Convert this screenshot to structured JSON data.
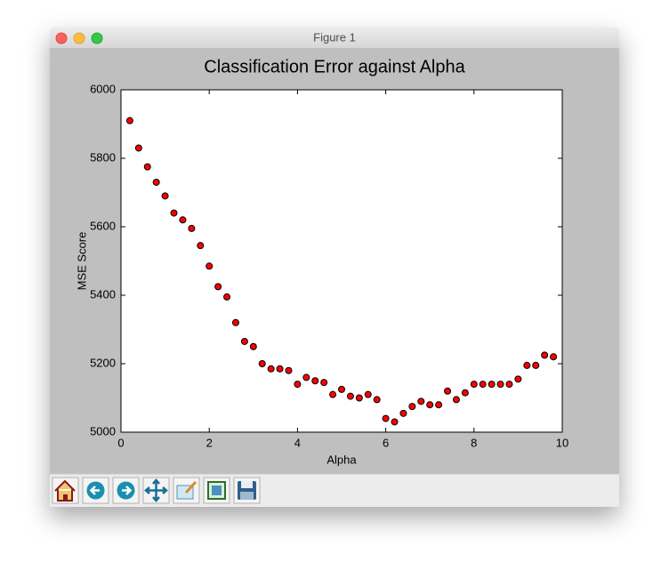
{
  "window": {
    "title": "Figure 1"
  },
  "chart_data": {
    "type": "scatter",
    "title": "Classification Error against Alpha",
    "x_label": "Alpha",
    "y_label": "MSE Score",
    "x": [
      0.2,
      0.4,
      0.6,
      0.8,
      1.0,
      1.2,
      1.4,
      1.6,
      1.8,
      2.0,
      2.2,
      2.4,
      2.6,
      2.8,
      3.0,
      3.2,
      3.4,
      3.6,
      3.8,
      4.0,
      4.2,
      4.4,
      4.6,
      4.8,
      5.0,
      5.2,
      5.4,
      5.6,
      5.8,
      6.0,
      6.2,
      6.4,
      6.6,
      6.8,
      7.0,
      7.2,
      7.4,
      7.6,
      7.8,
      8.0,
      8.2,
      8.4,
      8.6,
      8.8,
      9.0,
      9.2,
      9.4,
      9.6,
      9.8
    ],
    "values": [
      5910,
      5830,
      5775,
      5730,
      5690,
      5640,
      5620,
      5595,
      5545,
      5485,
      5425,
      5395,
      5320,
      5265,
      5250,
      5200,
      5185,
      5185,
      5180,
      5140,
      5160,
      5150,
      5145,
      5110,
      5125,
      5105,
      5100,
      5110,
      5095,
      5040,
      5030,
      5055,
      5075,
      5090,
      5080,
      5080,
      5120,
      5095,
      5115,
      5140,
      5140,
      5140,
      5140,
      5140,
      5155,
      5195,
      5195,
      5225,
      5220
    ],
    "color": "#ff0000",
    "xlim": [
      0,
      10
    ],
    "xticks": [
      0,
      2,
      4,
      6,
      8,
      10
    ],
    "ylim": [
      5000,
      6000
    ],
    "yticks": [
      5000,
      5200,
      5400,
      5600,
      5800,
      6000
    ]
  }
}
